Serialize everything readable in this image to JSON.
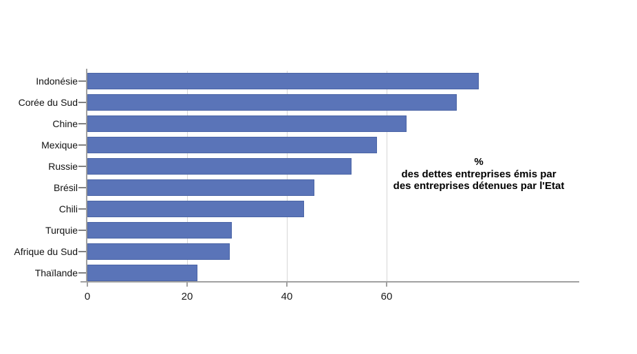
{
  "chart_data": {
    "type": "bar",
    "orientation": "horizontal",
    "categories": [
      "Indonésie",
      "Corée du Sud",
      "Chine",
      "Mexique",
      "Russie",
      "Brésil",
      "Chili",
      "Turquie",
      "Afrique du Sud",
      "Thaïlande"
    ],
    "values": [
      78.5,
      74,
      64,
      58,
      53,
      45.5,
      43.5,
      29,
      28.5,
      22
    ],
    "xticks": [
      0,
      20,
      40,
      60
    ],
    "xlim": [
      0,
      98.6
    ],
    "grid": "vertical-gridlines-at-xticks",
    "legend_position": "none",
    "annotation_lines": [
      "%",
      "des dettes entreprises émis par",
      "des entreprises détenues par l'Etat"
    ],
    "colors": {
      "bar_fill": "#5A74B8",
      "bar_border": "#4A64A5",
      "axis": "#A0A0A0",
      "gridline": "#D6D6D6",
      "text": "#000000"
    }
  }
}
